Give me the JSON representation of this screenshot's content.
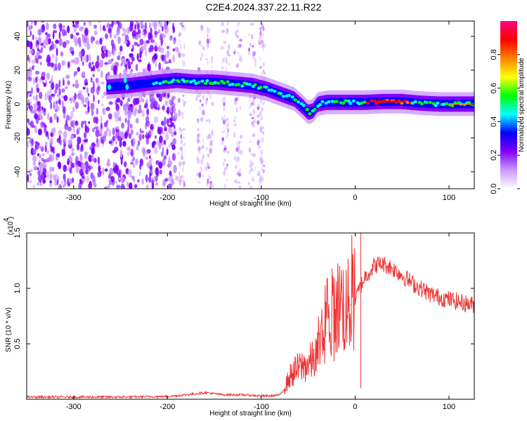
{
  "title": "C2E4.2024.337.22.11.R22",
  "chart_data": [
    {
      "type": "heatmap",
      "xlabel": "Height of straight line (km)",
      "ylabel": "Frequency (Hz)",
      "xlim": [
        -350,
        127
      ],
      "ylim": [
        -50,
        49
      ],
      "xticks": [
        -300,
        -200,
        -100,
        0,
        100
      ],
      "yticks": [
        -40,
        -20,
        0,
        20,
        40
      ],
      "colorbar": {
        "label": "Normalized spectral amplitude",
        "range": [
          0.0,
          1.0
        ],
        "ticks": [
          0.0,
          0.2,
          0.4,
          0.6,
          0.8
        ],
        "tick_labels": [
          "0.0",
          "0.2",
          "0.4",
          "0.6",
          "0.8"
        ],
        "colormap": [
          "#ffffff",
          "#cc99ff",
          "#8000ff",
          "#0000ff",
          "#00ffff",
          "#00ff00",
          "#ffff00",
          "#ff8000",
          "#ff0000",
          "#ff0080"
        ]
      },
      "ridge": {
        "x": [
          -265,
          -240,
          -210,
          -190,
          -170,
          -150,
          -130,
          -110,
          -95,
          -80,
          -65,
          -55,
          -50,
          -45,
          -40,
          -30,
          -10,
          10,
          30,
          50,
          70,
          90,
          110,
          127
        ],
        "y": [
          10,
          11,
          13,
          14,
          13,
          13,
          12,
          11,
          9,
          6,
          3,
          -2,
          -5,
          -4,
          0,
          1,
          1,
          1,
          1.5,
          1.5,
          0.5,
          0,
          0,
          0
        ],
        "peak_x": [
          20,
          50
        ]
      },
      "noise_regions": [
        {
          "x": [
            -350,
            -190
          ],
          "level": "strong"
        },
        {
          "x": [
            -190,
            -95
          ],
          "level": "faint"
        }
      ]
    },
    {
      "type": "line",
      "xlabel": "Height of straight line (km)",
      "ylabel": "SNR (10 * v/v)",
      "y_multiplier": "(x10",
      "y_exponent": "4",
      "xlim": [
        -350,
        127
      ],
      "ylim": [
        0,
        1.5
      ],
      "xticks": [
        -300,
        -200,
        -100,
        0,
        100
      ],
      "yticks": [
        0.5,
        1.0,
        1.5
      ],
      "ytick_labels": [
        "0.5",
        "1.0",
        "1.5"
      ],
      "color": "#ee3333",
      "series": [
        {
          "x": [
            -350,
            -300,
            -250,
            -200,
            -180,
            -160,
            -140,
            -120,
            -100,
            -90,
            -80,
            -75,
            -70,
            -65,
            -60,
            -55,
            -50,
            -45,
            -40,
            -35,
            -30,
            -25,
            -20,
            -15,
            -10,
            -5,
            0,
            5,
            10,
            15,
            20,
            25,
            30,
            35,
            40,
            50,
            60,
            70,
            80,
            90,
            100,
            110,
            120,
            127
          ],
          "y": [
            0.02,
            0.02,
            0.02,
            0.025,
            0.04,
            0.06,
            0.04,
            0.04,
            0.03,
            0.03,
            0.04,
            0.1,
            0.2,
            0.25,
            0.28,
            0.3,
            0.32,
            0.35,
            0.4,
            0.5,
            0.6,
            0.7,
            0.8,
            0.9,
            0.8,
            0.85,
            0.9,
            1.0,
            1.1,
            1.15,
            1.2,
            1.22,
            1.22,
            1.2,
            1.18,
            1.12,
            1.05,
            1.0,
            0.95,
            0.92,
            0.9,
            0.88,
            0.86,
            0.85
          ]
        }
      ]
    }
  ]
}
